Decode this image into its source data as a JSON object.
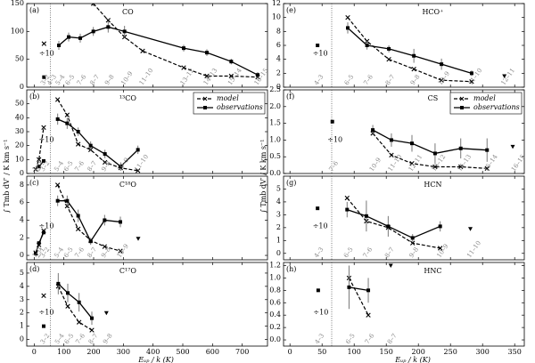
{
  "chart_data": [
    {
      "type": "line",
      "panel": "(a)",
      "title": "CO",
      "xlim": [
        -25,
        785
      ],
      "xticks": [
        0,
        100,
        200,
        300,
        400,
        500,
        600,
        700
      ],
      "ylim": [
        0,
        150
      ],
      "yticks": [
        0,
        50,
        100,
        150
      ],
      "divider": 55,
      "series": [
        {
          "color": "#000000",
          "x": [
            199,
            249,
            304,
            365,
            503,
            581,
            663,
            752
          ],
          "values": [
            150,
            120,
            90,
            65,
            35,
            20,
            20,
            18
          ]
        },
        {
          "color": "#000000",
          "x": [
            83,
            116,
            155,
            199,
            249,
            304,
            503,
            581,
            663,
            752
          ],
          "values": [
            75,
            90,
            88,
            100,
            108,
            100,
            70,
            62,
            46,
            22
          ],
          "errors": [
            8,
            8,
            8,
            8,
            10,
            10,
            6,
            6,
            5,
            5
          ]
        }
      ],
      "scaled": {
        "label": "÷10",
        "x": [
          33
        ],
        "model": [
          78
        ],
        "observations": [
          18
        ]
      },
      "transitions": [
        {
          "label": "3–2",
          "x": 33
        },
        {
          "label": "4–3",
          "x": 55
        },
        {
          "label": "5–4",
          "x": 83
        },
        {
          "label": "6–5",
          "x": 116
        },
        {
          "label": "7–6",
          "x": 155
        },
        {
          "label": "8–7",
          "x": 199
        },
        {
          "label": "9–8",
          "x": 249
        },
        {
          "label": "10–9",
          "x": 304
        },
        {
          "label": "11–10",
          "x": 365
        },
        {
          "label": "13–12",
          "x": 503
        },
        {
          "label": "14–13",
          "x": 581
        },
        {
          "label": "15–14",
          "x": 663
        },
        {
          "label": "16–15",
          "x": 752
        }
      ]
    },
    {
      "type": "line",
      "panel": "(b)",
      "title": "¹³CO",
      "ylabel": "∫ Tmb dV′ / K km s⁻¹",
      "legend": "upper right",
      "xlim": [
        -25,
        785
      ],
      "xticks": [
        0,
        100,
        200,
        300,
        400,
        500,
        600,
        700
      ],
      "ylim": [
        0,
        60
      ],
      "yticks": [
        0,
        10,
        20,
        30,
        40,
        50
      ],
      "divider": 55,
      "series": [
        {
          "name": "model",
          "color": "#000000",
          "x": [
            79,
            111,
            148,
            190,
            238,
            291,
            349
          ],
          "values": [
            53,
            42,
            21,
            17,
            8,
            4,
            2
          ]
        },
        {
          "name": "observations",
          "color": "#000000",
          "x": [
            79,
            111,
            148,
            190,
            238,
            291,
            349
          ],
          "values": [
            39,
            36,
            30,
            20,
            14,
            5,
            17
          ],
          "errors": [
            4,
            4,
            3,
            3,
            3,
            3,
            3
          ]
        }
      ],
      "scaled": {
        "label": "÷10",
        "x": [
          5,
          16,
          32
        ],
        "model": [
          3,
          10,
          33
        ],
        "observations": [
          null,
          5,
          9
        ]
      },
      "transitions": [
        {
          "label": "1–0",
          "x": 5
        },
        {
          "label": "2–1",
          "x": 16
        },
        {
          "label": "3–2",
          "x": 32
        },
        {
          "label": "5–4",
          "x": 79
        },
        {
          "label": "6–5",
          "x": 111
        },
        {
          "label": "7–6",
          "x": 148
        },
        {
          "label": "8–7",
          "x": 190
        },
        {
          "label": "9–8",
          "x": 238
        },
        {
          "label": "10–9",
          "x": 291
        },
        {
          "label": "11–10",
          "x": 349
        }
      ]
    },
    {
      "type": "line",
      "panel": "(c)",
      "title": "C¹⁸O",
      "xlim": [
        -25,
        785
      ],
      "xticks": [
        0,
        100,
        200,
        300,
        400,
        500,
        600,
        700
      ],
      "ylim": [
        -0.5,
        9
      ],
      "yticks": [
        0,
        2,
        4,
        6,
        8
      ],
      "divider": 55,
      "series": [
        {
          "color": "#000000",
          "x": [
            79,
            111,
            148,
            190,
            237,
            290
          ],
          "values": [
            8,
            5.6,
            3.0,
            1.7,
            1.0,
            0.5
          ]
        },
        {
          "color": "#000000",
          "x": [
            79,
            111,
            148,
            190,
            237,
            290
          ],
          "values": [
            6.2,
            6.2,
            4.5,
            1.6,
            4.0,
            3.8
          ],
          "errors": [
            0.6,
            0.6,
            0.7,
            0.4,
            0.6,
            0.6
          ]
        }
      ],
      "upper_limits": {
        "x": [
          350
        ],
        "values": [
          1.9
        ]
      },
      "scaled": {
        "label": "÷10",
        "x": [
          5,
          16,
          32
        ],
        "model": [
          0.3,
          1.2,
          2.8
        ],
        "observations": [
          0.2,
          1.4,
          2.6
        ]
      },
      "transitions": [
        {
          "label": "1–0",
          "x": 5
        },
        {
          "label": "2–1",
          "x": 16
        },
        {
          "label": "3–2",
          "x": 32
        },
        {
          "label": "5–4",
          "x": 79
        },
        {
          "label": "6–5",
          "x": 111
        },
        {
          "label": "7–6",
          "x": 148
        },
        {
          "label": "8–7",
          "x": 190
        },
        {
          "label": "9–8",
          "x": 237
        },
        {
          "label": "10–9",
          "x": 290
        }
      ]
    },
    {
      "type": "line",
      "panel": "(d)",
      "title": "C¹⁷O",
      "xlabel": "Eᵤₚ / k (K)",
      "xlim": [
        -25,
        785
      ],
      "xticks": [
        0,
        100,
        200,
        300,
        400,
        500,
        600,
        700
      ],
      "ylim": [
        -0.5,
        5.8
      ],
      "yticks": [
        0,
        1,
        2,
        3,
        4,
        5
      ],
      "divider": 55,
      "series": [
        {
          "color": "#000000",
          "x": [
            81,
            113,
            151,
            194
          ],
          "values": [
            4.0,
            2.5,
            1.3,
            0.7
          ]
        },
        {
          "color": "#000000",
          "x": [
            81,
            113,
            151,
            194
          ],
          "values": [
            4.2,
            3.5,
            2.8,
            1.6
          ],
          "errors": [
            0.8,
            0.7,
            0.7,
            0.5
          ]
        }
      ],
      "upper_limits": {
        "x": [
          243
        ],
        "values": [
          2.0
        ]
      },
      "scaled": {
        "label": "÷10",
        "x": [
          32
        ],
        "model": [
          3.3
        ],
        "observations": [
          1.0
        ]
      },
      "transitions": [
        {
          "label": "3–2",
          "x": 32
        },
        {
          "label": "5–4",
          "x": 81
        },
        {
          "label": "6–5",
          "x": 113
        },
        {
          "label": "7–6",
          "x": 151
        },
        {
          "label": "8–7",
          "x": 194
        },
        {
          "label": "9–8",
          "x": 243
        }
      ]
    },
    {
      "type": "line",
      "panel": "(e)",
      "title": "HCO⁺",
      "xlim": [
        -10,
        365
      ],
      "xticks": [
        0,
        50,
        100,
        150,
        200,
        250,
        300,
        350
      ],
      "ylim": [
        0,
        12
      ],
      "yticks": [
        0,
        2,
        4,
        6,
        8,
        10,
        12
      ],
      "divider": 65,
      "series": [
        {
          "color": "#000000",
          "x": [
            90,
            120,
            154,
            193,
            236,
            283
          ],
          "values": [
            10,
            6.6,
            4.0,
            2.6,
            1.0,
            0.8
          ]
        },
        {
          "color": "#000000",
          "x": [
            90,
            120,
            154,
            193,
            236,
            283
          ],
          "values": [
            8.5,
            6.0,
            5.5,
            4.5,
            3.3,
            2.0
          ],
          "errors": [
            0.8,
            0.6,
            0.5,
            1.0,
            0.8,
            0.4
          ]
        }
      ],
      "upper_limits": {
        "x": [
          334
        ],
        "values": [
          1.6
        ]
      },
      "scaled": {
        "label": "÷10",
        "x": [
          43
        ],
        "model": [
          null
        ],
        "observations": [
          6.0
        ]
      },
      "transitions": [
        {
          "label": "4–3",
          "x": 43
        },
        {
          "label": "6–5",
          "x": 90
        },
        {
          "label": "7–6",
          "x": 120
        },
        {
          "label": "8–7",
          "x": 154
        },
        {
          "label": "9–8",
          "x": 193
        },
        {
          "label": "10–9",
          "x": 236
        },
        {
          "label": "11–10",
          "x": 283
        },
        {
          "label": "12–11",
          "x": 334
        }
      ]
    },
    {
      "type": "line",
      "panel": "(f)",
      "title": "CS",
      "ylabel": "∫ Tmb dV′ / K km s⁻¹",
      "legend": "upper right",
      "xlim": [
        -10,
        365
      ],
      "xticks": [
        0,
        50,
        100,
        150,
        200,
        250,
        300,
        350
      ],
      "ylim": [
        0,
        2.5
      ],
      "yticks": [
        {
          "value": 0,
          "label": "0.0"
        },
        0.5,
        {
          "value": 1,
          "label": "1.0"
        },
        1.5,
        {
          "value": 2,
          "label": "2.0"
        },
        2.5
      ],
      "divider": 65,
      "series": [
        {
          "name": "model",
          "color": "#000000",
          "x": [
            129,
            158,
            190,
            226,
            266,
            307
          ],
          "values": [
            1.2,
            0.55,
            0.3,
            0.2,
            0.2,
            0.15
          ]
        },
        {
          "name": "observations",
          "color": "#000000",
          "x": [
            129,
            158,
            190,
            226,
            266,
            307
          ],
          "values": [
            1.3,
            1.0,
            0.9,
            0.6,
            0.75,
            0.7
          ],
          "errors": [
            0.15,
            0.2,
            0.25,
            0.3,
            0.3,
            0.35
          ]
        }
      ],
      "upper_limits": {
        "x": [
          347
        ],
        "values": [
          0.8
        ]
      },
      "scaled": {
        "label": "÷10",
        "x": [
          66
        ],
        "model": [
          null
        ],
        "observations": [
          1.55
        ]
      },
      "transitions": [
        {
          "label": "7–6",
          "x": 66
        },
        {
          "label": "10–9",
          "x": 129
        },
        {
          "label": "11–10",
          "x": 158
        },
        {
          "label": "12–11",
          "x": 190
        },
        {
          "label": "13–12",
          "x": 226
        },
        {
          "label": "14–13",
          "x": 266
        },
        {
          "label": "15–14",
          "x": 307
        },
        {
          "label": "16–15",
          "x": 350
        }
      ]
    },
    {
      "type": "line",
      "panel": "(g)",
      "title": "HCN",
      "xlim": [
        -10,
        365
      ],
      "xticks": [
        0,
        50,
        100,
        150,
        200,
        250,
        300,
        350
      ],
      "ylim": [
        -0.5,
        6
      ],
      "yticks": [
        0,
        1,
        2,
        3,
        4,
        5
      ],
      "divider": 65,
      "series": [
        {
          "color": "#000000",
          "x": [
            89,
            119,
            153,
            191,
            234
          ],
          "values": [
            4.3,
            2.5,
            2.0,
            0.8,
            0.4
          ]
        },
        {
          "color": "#000000",
          "x": [
            89,
            119,
            153,
            191,
            234
          ],
          "values": [
            3.4,
            2.9,
            2.1,
            1.2,
            2.1
          ],
          "errors": [
            0.6,
            1.2,
            0.8,
            0.3,
            0.4
          ]
        }
      ],
      "upper_limits": {
        "x": [
          281
        ],
        "values": [
          1.9
        ]
      },
      "scaled": {
        "label": "÷10",
        "x": [
          43
        ],
        "model": [
          null
        ],
        "observations": [
          3.5
        ]
      },
      "transitions": [
        {
          "label": "4–3",
          "x": 43
        },
        {
          "label": "6–5",
          "x": 89
        },
        {
          "label": "7–6",
          "x": 119
        },
        {
          "label": "8–7",
          "x": 153
        },
        {
          "label": "9–8",
          "x": 191
        },
        {
          "label": "10–9",
          "x": 234
        },
        {
          "label": "11–10",
          "x": 281
        }
      ]
    },
    {
      "type": "line",
      "panel": "(h)",
      "title": "HNC",
      "xlabel": "Eᵤₚ / k (K)",
      "xlim": [
        -10,
        365
      ],
      "xticks": [
        0,
        50,
        100,
        150,
        200,
        250,
        300,
        350
      ],
      "ylim": [
        -0.1,
        1.25
      ],
      "yticks": [
        {
          "value": 0,
          "label": "0.0"
        },
        0.2,
        0.4,
        0.6,
        0.8,
        {
          "value": 1,
          "label": "1.0"
        },
        1.2
      ],
      "divider": 65,
      "series": [
        {
          "color": "#000000",
          "x": [
            92,
            122
          ],
          "values": [
            1.0,
            0.4
          ]
        },
        {
          "color": "#000000",
          "x": [
            92,
            122
          ],
          "values": [
            0.85,
            0.8
          ],
          "errors": [
            0.35,
            0.2
          ]
        }
      ],
      "upper_limits": {
        "x": [
          157
        ],
        "values": [
          1.2
        ]
      },
      "scaled": {
        "label": "÷10",
        "x": [
          44
        ],
        "model": [
          null
        ],
        "observations": [
          0.8
        ]
      },
      "transitions": [
        {
          "label": "4–3",
          "x": 44
        },
        {
          "label": "6–5",
          "x": 92
        },
        {
          "label": "7–6",
          "x": 122
        },
        {
          "label": "8–7",
          "x": 157
        }
      ]
    }
  ]
}
